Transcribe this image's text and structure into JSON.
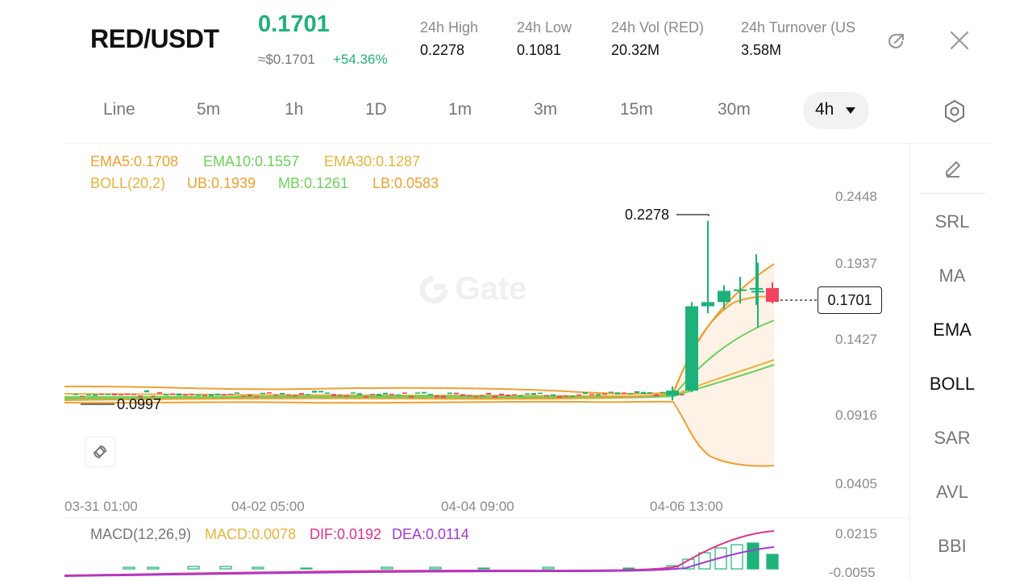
{
  "header": {
    "pair": "RED/USDT",
    "price": "0.1701",
    "usd_price": "≈$0.1701",
    "change": "+54.36%",
    "stats": [
      {
        "label": "24h   High",
        "value": "0.2278"
      },
      {
        "label": "24h   Low",
        "value": "0.1081"
      },
      {
        "label": "24h   Vol (RED)",
        "value": "20.32M"
      },
      {
        "label": "24h   Turnover (US",
        "value": "3.58M"
      }
    ]
  },
  "timeframes": [
    "Line",
    "5m",
    "1h",
    "1D",
    "1m",
    "3m",
    "15m",
    "30m"
  ],
  "active_timeframe": "4h",
  "indicators": {
    "ema5": "EMA5:0.1708",
    "ema10": "EMA10:0.1557",
    "ema30": "EMA30:0.1287",
    "boll": "BOLL(20,2)",
    "ub": "UB:0.1939",
    "mb": "MB:0.1261",
    "lb": "LB:0.0583"
  },
  "macd": {
    "label": "MACD(12,26,9)",
    "macd": "MACD:0.0078",
    "dif": "DIF:0.0192",
    "dea": "DEA:0.0114"
  },
  "sidebar": [
    "SRL",
    "MA",
    "EMA",
    "BOLL",
    "SAR",
    "AVL",
    "BBI"
  ],
  "sidebar_active": [
    "EMA",
    "BOLL"
  ],
  "watermark": "Gate",
  "chart": {
    "current_price": "0.1701",
    "high_label": "0.2278",
    "low_label": "0.0997",
    "price_axis": [
      "0.2448",
      "0.1937",
      "0.1427",
      "0.0916",
      "0.0405"
    ],
    "time_axis": [
      "03-31 01:00",
      "04-02 05:00",
      "04-04 09:00",
      "04-06 13:00"
    ],
    "macd_axis": [
      "0.0215",
      "-0.0055"
    ]
  },
  "colors": {
    "up": "#1db27a",
    "down": "#f0445f",
    "ema5": "#f0a030",
    "ema10": "#6dd05a",
    "ema30": "#e8b43a",
    "boll": "#f0a030",
    "dif": "#e0338a",
    "dea": "#a23ad6"
  },
  "chart_data": {
    "type": "candlestick",
    "xlabel": "",
    "ylabel": "",
    "ylim": [
      0.0405,
      0.2448
    ],
    "x_ticks": [
      "03-31 01:00",
      "04-02 05:00",
      "04-04 09:00",
      "04-06 13:00"
    ],
    "recent_candles": [
      {
        "open": 0.1035,
        "high": 0.11,
        "low": 0.1,
        "close": 0.107
      },
      {
        "open": 0.107,
        "high": 0.17,
        "low": 0.106,
        "close": 0.167
      },
      {
        "open": 0.167,
        "high": 0.2278,
        "low": 0.162,
        "close": 0.17
      },
      {
        "open": 0.17,
        "high": 0.182,
        "low": 0.165,
        "close": 0.178
      },
      {
        "open": 0.178,
        "high": 0.188,
        "low": 0.169,
        "close": 0.179
      },
      {
        "open": 0.179,
        "high": 0.204,
        "low": 0.168,
        "close": 0.18
      },
      {
        "open": 0.178,
        "high": 0.198,
        "low": 0.152,
        "close": 0.178
      },
      {
        "open": 0.18,
        "high": 0.184,
        "low": 0.169,
        "close": 0.1701
      }
    ]
  }
}
